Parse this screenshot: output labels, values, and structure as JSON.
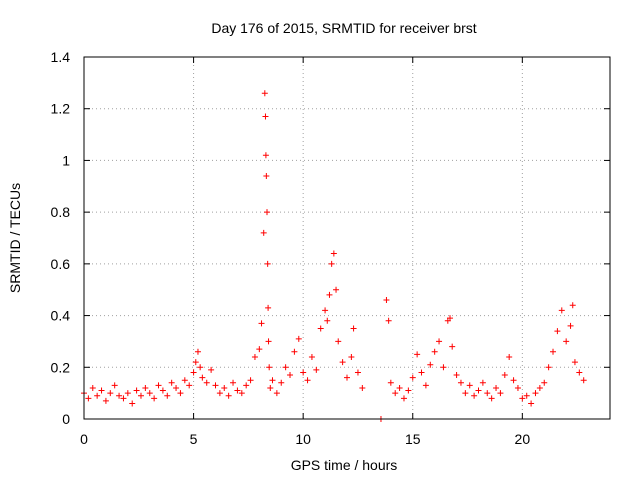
{
  "chart_data": {
    "type": "scatter",
    "title": "Day 176 of 2015, SRMTID for receiver brst",
    "xlabel": "GPS time / hours",
    "ylabel": "SRMTID / TECUs",
    "xlim": [
      0,
      24
    ],
    "ylim": [
      0,
      1.4
    ],
    "xticks": [
      0,
      5,
      10,
      15,
      20
    ],
    "xtick_labels": [
      "0",
      "5",
      "10",
      "15",
      "20"
    ],
    "yticks": [
      0,
      0.2,
      0.4,
      0.6,
      0.8,
      1.0,
      1.2,
      1.4
    ],
    "ytick_labels": [
      "0",
      "0.2",
      "0.4",
      "0.6",
      "0.8",
      "1",
      "1.2",
      "1.4"
    ],
    "grid": true,
    "marker": "+",
    "color": "#ff0000",
    "series": [
      {
        "name": "brst",
        "x": [
          0.0,
          0.2,
          0.4,
          0.6,
          0.8,
          1.0,
          1.2,
          1.4,
          1.6,
          1.8,
          2.0,
          2.2,
          2.4,
          2.6,
          2.8,
          3.0,
          3.2,
          3.4,
          3.6,
          3.8,
          4.0,
          4.2,
          4.4,
          4.6,
          4.8,
          5.0,
          5.1,
          5.2,
          5.3,
          5.4,
          5.6,
          5.8,
          6.0,
          6.2,
          6.4,
          6.6,
          6.8,
          7.0,
          7.2,
          7.4,
          7.6,
          7.8,
          8.0,
          8.1,
          8.2,
          8.25,
          8.28,
          8.3,
          8.32,
          8.35,
          8.38,
          8.4,
          8.42,
          8.45,
          8.5,
          8.6,
          8.8,
          9.0,
          9.2,
          9.4,
          9.6,
          9.8,
          10.0,
          10.2,
          10.4,
          10.6,
          10.8,
          11.0,
          11.1,
          11.2,
          11.3,
          11.4,
          11.5,
          11.6,
          11.8,
          12.0,
          12.2,
          12.3,
          12.5,
          12.7,
          13.55,
          13.8,
          13.9,
          14.0,
          14.2,
          14.4,
          14.6,
          14.8,
          15.0,
          15.2,
          15.4,
          15.6,
          15.8,
          16.0,
          16.2,
          16.4,
          16.6,
          16.7,
          16.8,
          17.0,
          17.2,
          17.4,
          17.6,
          17.8,
          18.0,
          18.2,
          18.4,
          18.6,
          18.8,
          19.0,
          19.2,
          19.4,
          19.6,
          19.8,
          20.0,
          20.2,
          20.4,
          20.6,
          20.8,
          21.0,
          21.2,
          21.4,
          21.6,
          21.8,
          22.0,
          22.2,
          22.3,
          22.4,
          22.6,
          22.8
        ],
        "y": [
          0.1,
          0.08,
          0.12,
          0.09,
          0.11,
          0.07,
          0.1,
          0.13,
          0.09,
          0.08,
          0.1,
          0.06,
          0.11,
          0.09,
          0.12,
          0.1,
          0.08,
          0.13,
          0.11,
          0.09,
          0.14,
          0.12,
          0.1,
          0.15,
          0.13,
          0.18,
          0.22,
          0.26,
          0.2,
          0.16,
          0.14,
          0.19,
          0.13,
          0.1,
          0.12,
          0.09,
          0.14,
          0.11,
          0.1,
          0.13,
          0.15,
          0.24,
          0.27,
          0.37,
          0.72,
          1.26,
          1.17,
          1.02,
          0.94,
          0.8,
          0.6,
          0.43,
          0.3,
          0.2,
          0.12,
          0.15,
          0.1,
          0.14,
          0.2,
          0.17,
          0.26,
          0.31,
          0.18,
          0.15,
          0.24,
          0.19,
          0.35,
          0.42,
          0.38,
          0.48,
          0.6,
          0.64,
          0.5,
          0.3,
          0.22,
          0.16,
          0.24,
          0.35,
          0.18,
          0.12,
          0.0,
          0.46,
          0.38,
          0.14,
          0.1,
          0.12,
          0.08,
          0.11,
          0.16,
          0.25,
          0.18,
          0.13,
          0.21,
          0.26,
          0.3,
          0.2,
          0.38,
          0.39,
          0.28,
          0.17,
          0.14,
          0.1,
          0.13,
          0.09,
          0.11,
          0.14,
          0.1,
          0.08,
          0.12,
          0.1,
          0.17,
          0.24,
          0.15,
          0.12,
          0.08,
          0.09,
          0.06,
          0.1,
          0.12,
          0.14,
          0.2,
          0.26,
          0.34,
          0.42,
          0.3,
          0.36,
          0.44,
          0.22,
          0.18,
          0.15
        ]
      }
    ]
  }
}
